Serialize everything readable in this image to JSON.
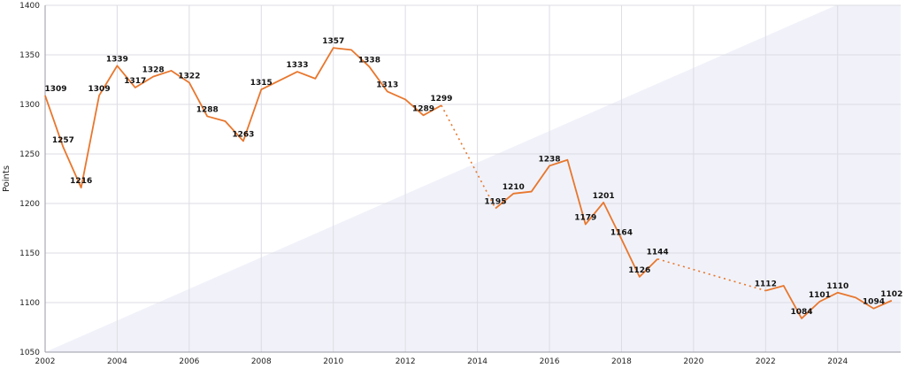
{
  "chart_data": {
    "type": "line",
    "title": "",
    "xlabel": "",
    "ylabel": "Points",
    "xlim": [
      2002.0,
      2025.75
    ],
    "ylim": [
      1050,
      1400
    ],
    "grid": true,
    "legend": "none",
    "x_ticks": [
      2002,
      2004,
      2006,
      2008,
      2010,
      2012,
      2014,
      2016,
      2018,
      2020,
      2022,
      2024
    ],
    "y_ticks": [
      1050,
      1100,
      1150,
      1200,
      1250,
      1300,
      1350,
      1400
    ],
    "line_color": "#e8772e",
    "series": [
      {
        "points": [
          {
            "x": 2002.0,
            "y": 1309,
            "label": "1309"
          },
          {
            "x": 2002.5,
            "y": 1257,
            "label": "1257"
          },
          {
            "x": 2003.0,
            "y": 1216,
            "label": "1216"
          },
          {
            "x": 2003.5,
            "y": 1309,
            "label": "1309"
          },
          {
            "x": 2004.0,
            "y": 1339,
            "label": "1339"
          },
          {
            "x": 2004.5,
            "y": 1317,
            "label": "1317"
          },
          {
            "x": 2005.0,
            "y": 1328,
            "label": "1328"
          },
          {
            "x": 2005.5,
            "y": 1334
          },
          {
            "x": 2006.0,
            "y": 1322,
            "label": "1322"
          },
          {
            "x": 2006.5,
            "y": 1288,
            "label": "1288"
          },
          {
            "x": 2007.0,
            "y": 1283
          },
          {
            "x": 2007.5,
            "y": 1263,
            "label": "1263"
          },
          {
            "x": 2008.0,
            "y": 1315,
            "label": "1315"
          },
          {
            "x": 2009.0,
            "y": 1333,
            "label": "1333"
          },
          {
            "x": 2009.5,
            "y": 1326
          },
          {
            "x": 2010.0,
            "y": 1357,
            "label": "1357"
          },
          {
            "x": 2010.5,
            "y": 1355
          },
          {
            "x": 2011.0,
            "y": 1338,
            "label": "1338"
          },
          {
            "x": 2011.5,
            "y": 1313,
            "label": "1313"
          },
          {
            "x": 2012.0,
            "y": 1305
          },
          {
            "x": 2012.5,
            "y": 1289,
            "label": "1289"
          },
          {
            "x": 2013.0,
            "y": 1299,
            "label": "1299"
          },
          {
            "x": 2014.5,
            "y": 1195,
            "label": "1195",
            "gap_before": true
          },
          {
            "x": 2015.0,
            "y": 1210,
            "label": "1210"
          },
          {
            "x": 2015.5,
            "y": 1212
          },
          {
            "x": 2016.0,
            "y": 1238,
            "label": "1238"
          },
          {
            "x": 2016.5,
            "y": 1244
          },
          {
            "x": 2017.0,
            "y": 1179,
            "label": "1179"
          },
          {
            "x": 2017.5,
            "y": 1201,
            "label": "1201"
          },
          {
            "x": 2018.0,
            "y": 1164,
            "label": "1164"
          },
          {
            "x": 2018.5,
            "y": 1126,
            "label": "1126"
          },
          {
            "x": 2019.0,
            "y": 1144,
            "label": "1144"
          },
          {
            "x": 2022.0,
            "y": 1112,
            "label": "1112",
            "gap_before": true
          },
          {
            "x": 2022.5,
            "y": 1117
          },
          {
            "x": 2023.0,
            "y": 1084,
            "label": "1084"
          },
          {
            "x": 2023.5,
            "y": 1101,
            "label": "1101"
          },
          {
            "x": 2024.0,
            "y": 1110,
            "label": "1110"
          },
          {
            "x": 2024.5,
            "y": 1105
          },
          {
            "x": 2025.0,
            "y": 1094,
            "label": "1094"
          },
          {
            "x": 2025.5,
            "y": 1102,
            "label": "1102"
          }
        ]
      }
    ]
  }
}
